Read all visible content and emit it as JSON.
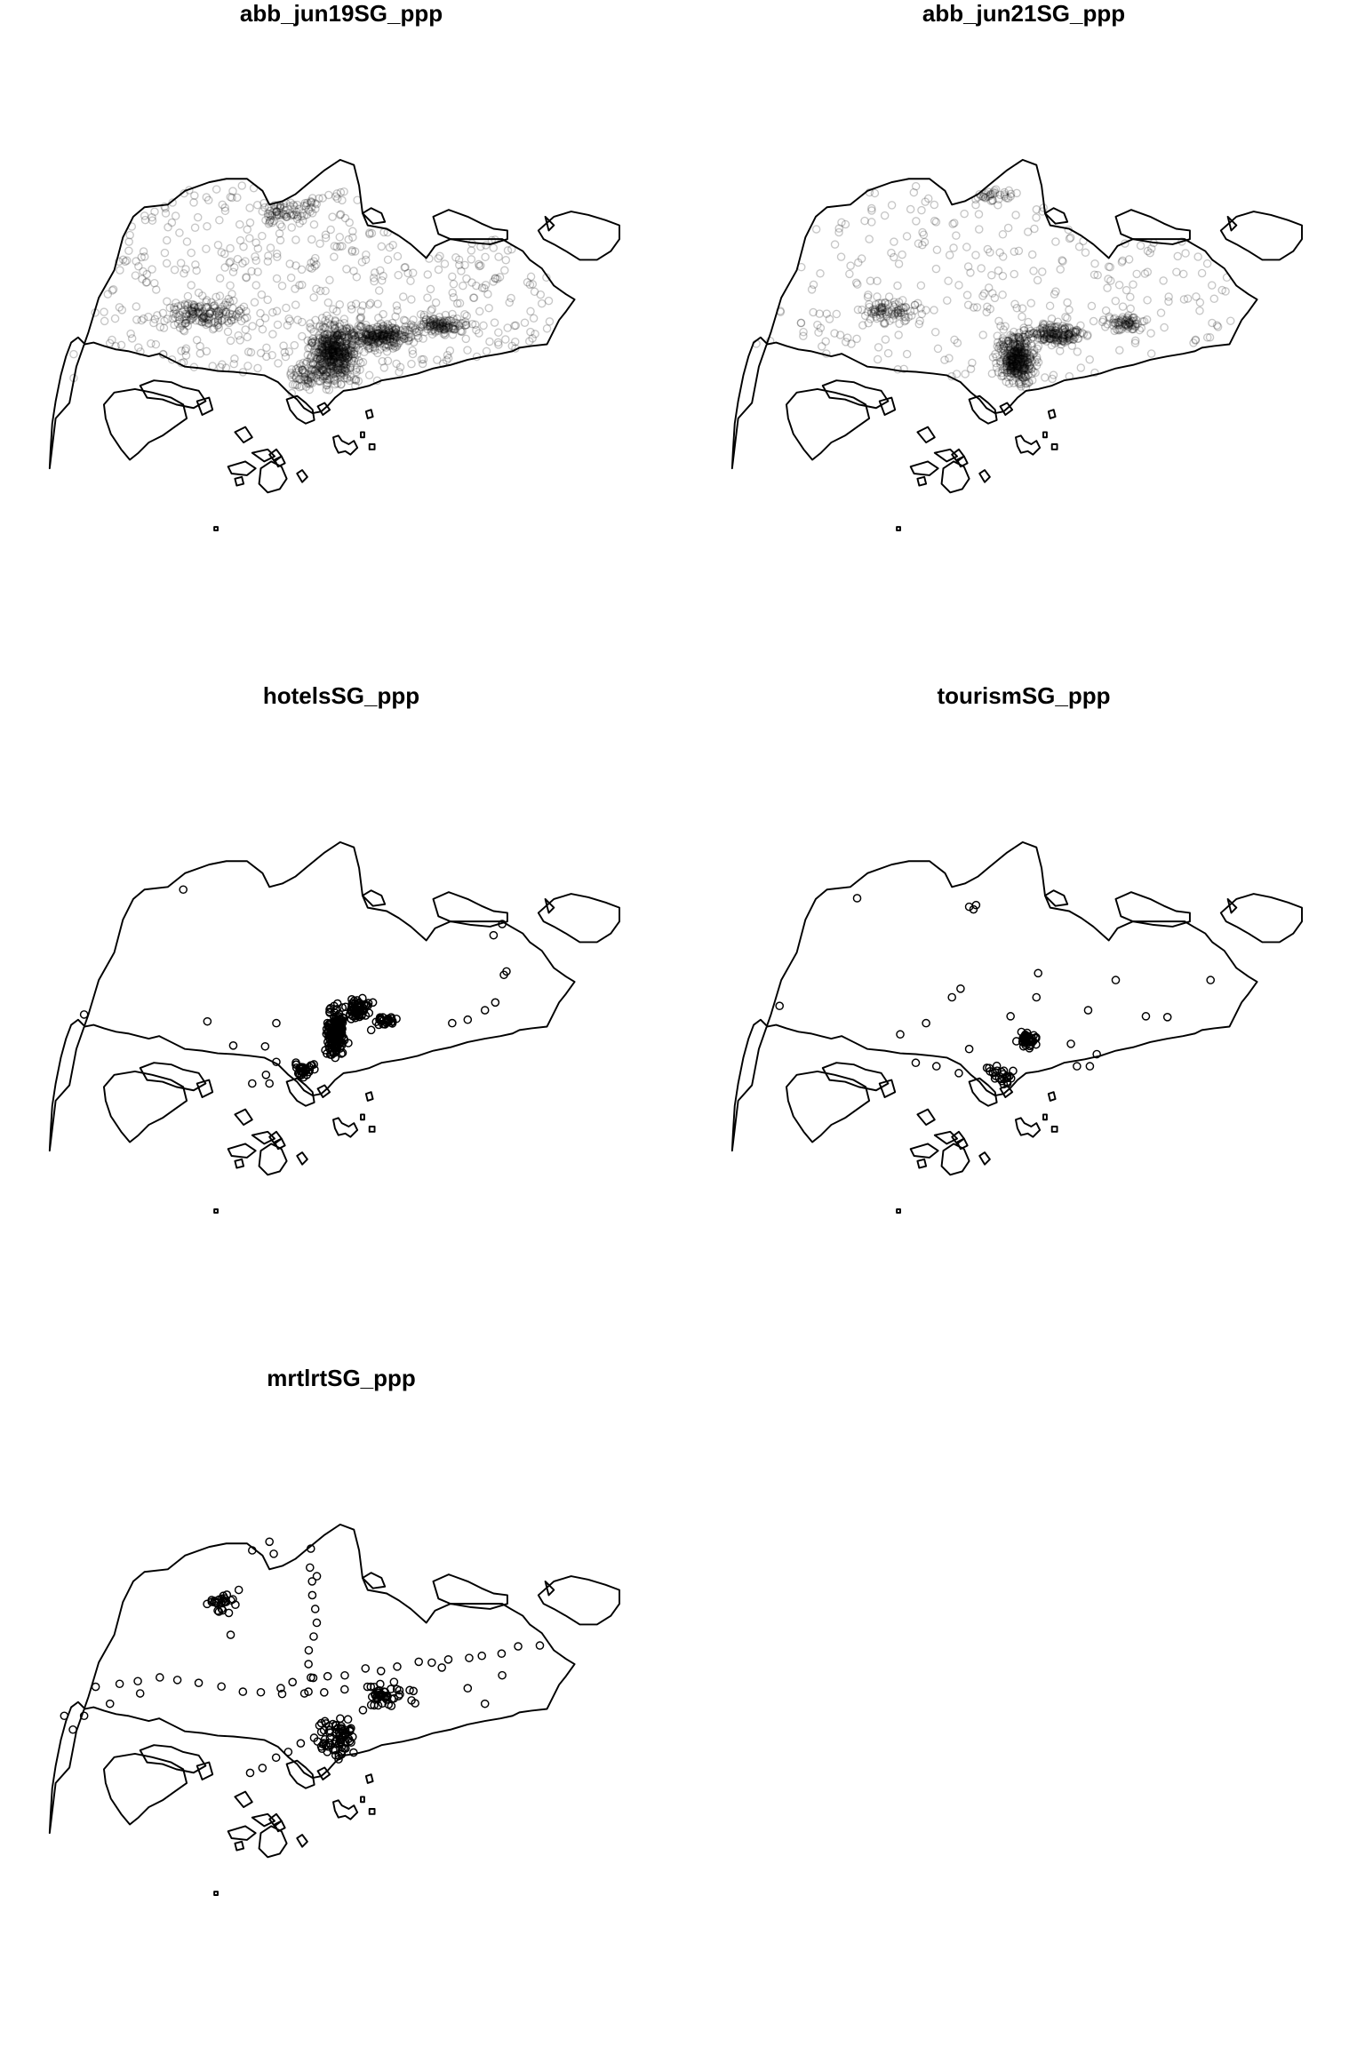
{
  "figure": {
    "panels": [
      {
        "title": "abb_jun19SG_ppp",
        "style": "translucent",
        "dataset": "abb_jun19"
      },
      {
        "title": "abb_jun21SG_ppp",
        "style": "translucent",
        "dataset": "abb_jun21"
      },
      {
        "title": "hotelsSG_ppp",
        "style": "outline",
        "dataset": "hotels"
      },
      {
        "title": "tourismSG_ppp",
        "style": "outline",
        "dataset": "tourism"
      },
      {
        "title": "mrtlrtSG_ppp",
        "style": "outline",
        "dataset": "mrtlrt"
      }
    ],
    "point_color": "#000000",
    "boundary_color": "#000000"
  }
}
